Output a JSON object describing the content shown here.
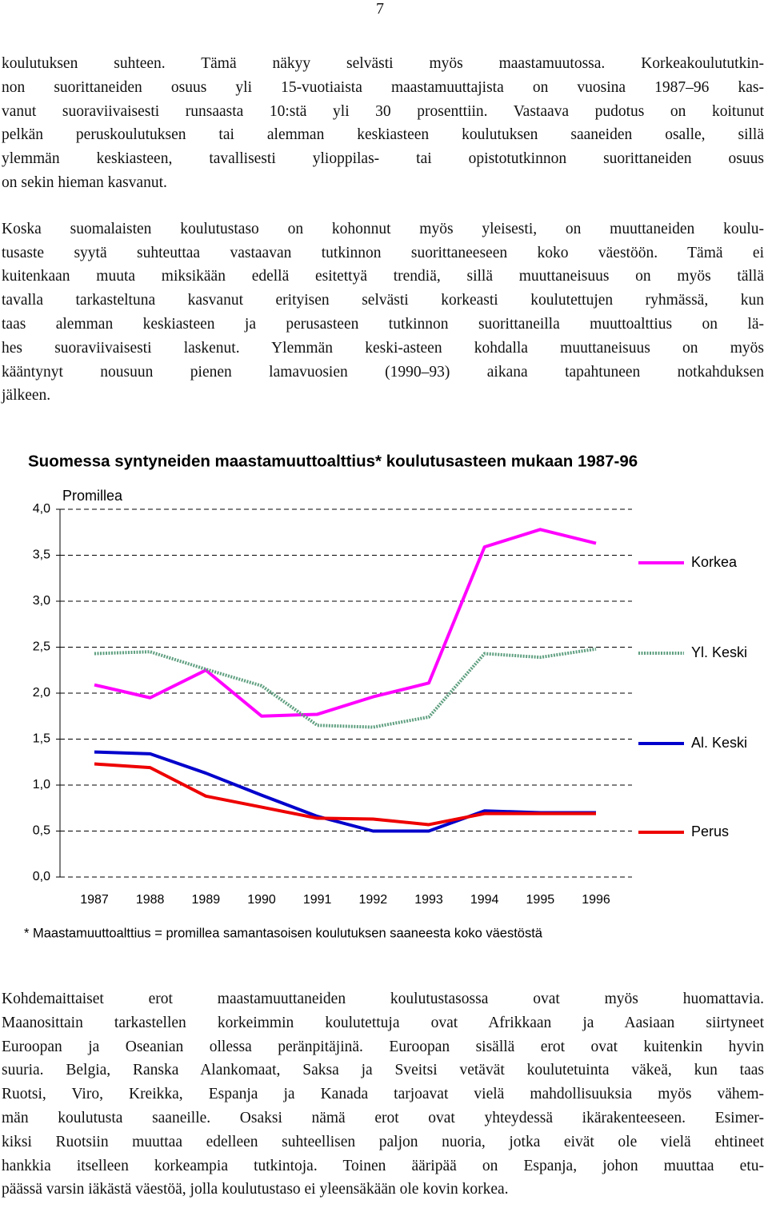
{
  "page_number": "7",
  "text_before": [
    [
      "koulutuksen suhteen. Tämä näkyy selvästi myös maastamuutossa. Korkeakoulututkin-",
      "non suorittaneiden osuus yli 15-vuotiaista maastamuuttajista on vuosina 1987–96 kas-",
      "vanut suoraviivaisesti runsaasta 10:stä yli 30 prosenttiin. Vastaava pudotus on koitunut",
      "pelkän peruskoulutuksen tai alemman keskiasteen koulutuksen saaneiden osalle, sillä",
      "ylemmän keskiasteen, tavallisesti ylioppilas- tai opistotutkinnon suorittaneiden osuus",
      "on sekin hieman kasvanut."
    ],
    [
      "Koska suomalaisten koulutustaso on kohonnut myös yleisesti, on muuttaneiden koulu-",
      "tusaste syytä suhteuttaa vastaavan tutkinnon suorittaneeseen koko väestöön. Tämä ei",
      "kuitenkaan muuta miksikään edellä esitettyä trendiä, sillä muuttaneisuus on myös tällä",
      "tavalla tarkasteltuna kasvanut erityisen selvästi korkeasti koulutettujen ryhmässä, kun",
      "taas alemman keskiasteen ja perusasteen tutkinnon suorittaneilla muuttoalttius on lä-",
      "hes suoraviivaisesti laskenut. Ylemmän keski-asteen kohdalla muuttaneisuus on myös",
      "kääntynyt nousuun pienen lamavuosien (1990–93) aikana tapahtuneen notkahduksen",
      "jälkeen."
    ]
  ],
  "chart_data": {
    "type": "line",
    "title": "Suomessa syntyneiden maastamuuttoalttius* koulutusasteen mukaan 1987-96",
    "y_label": "Promillea",
    "footnote": "* Maastamuuttoalttius = promillea samantasoisen koulutuksen saaneesta koko väestöstä",
    "categories": [
      "1987",
      "1988",
      "1989",
      "1990",
      "1991",
      "1992",
      "1993",
      "1994",
      "1995",
      "1996"
    ],
    "series": [
      {
        "name": "Korkea",
        "color": "#ff00ff",
        "values": [
          2.09,
          1.95,
          2.25,
          1.75,
          1.77,
          1.96,
          2.11,
          3.59,
          3.78,
          3.63
        ]
      },
      {
        "name": "Yl. Keski",
        "color": "#5f9f80",
        "dash": "dotted",
        "values": [
          2.43,
          2.45,
          2.26,
          2.08,
          1.65,
          1.63,
          1.74,
          2.43,
          2.39,
          2.48
        ]
      },
      {
        "name": "Al. Keski",
        "color": "#0000cc",
        "values": [
          1.36,
          1.34,
          1.13,
          0.89,
          0.66,
          0.5,
          0.5,
          0.72,
          0.7,
          0.7
        ]
      },
      {
        "name": "Perus",
        "color": "#ee0000",
        "values": [
          1.23,
          1.19,
          0.88,
          0.76,
          0.64,
          0.63,
          0.57,
          0.69,
          0.69,
          0.69
        ]
      }
    ],
    "ylim": [
      0,
      4
    ],
    "yticks": [
      {
        "value": 0,
        "label": "0,0"
      },
      {
        "value": 0.5,
        "label": "0,5"
      },
      {
        "value": 1,
        "label": "1,0"
      },
      {
        "value": 1.5,
        "label": "1,5"
      },
      {
        "value": 2,
        "label": "2,0"
      },
      {
        "value": 2.5,
        "label": "2,5"
      },
      {
        "value": 3,
        "label": "3,0"
      },
      {
        "value": 3.5,
        "label": "3,5"
      },
      {
        "value": 4,
        "label": "4,0"
      }
    ],
    "grid": true
  },
  "text_after": [
    [
      "Kohdemaittaiset erot maastamuuttaneiden koulutustasossa ovat myös huomattavia.",
      "Maanosittain tarkastellen korkeimmin koulutettuja ovat Afrikkaan ja Aasiaan siirtyneet",
      "Euroopan ja Oseanian ollessa peränpitäjinä. Euroopan sisällä erot ovat kuitenkin hyvin",
      "suuria. Belgia, Ranska Alankomaat, Saksa ja Sveitsi vetävät koulutetuinta väkeä, kun taas",
      "Ruotsi, Viro, Kreikka, Espanja ja Kanada tarjoavat vielä mahdollisuuksia myös vähem-",
      "män koulutusta saaneille. Osaksi nämä erot ovat yhteydessä ikärakenteeseen. Esimer-",
      "kiksi Ruotsiin muuttaa edelleen suhteellisen paljon nuoria, jotka eivät ole vielä ehtineet",
      "hankkia itselleen korkeampia tutkintoja. Toinen ääripää on Espanja, johon muuttaa etu-",
      "päässä varsin iäkästä väestöä, jolla koulutustaso ei yleensäkään ole kovin korkea."
    ]
  ]
}
